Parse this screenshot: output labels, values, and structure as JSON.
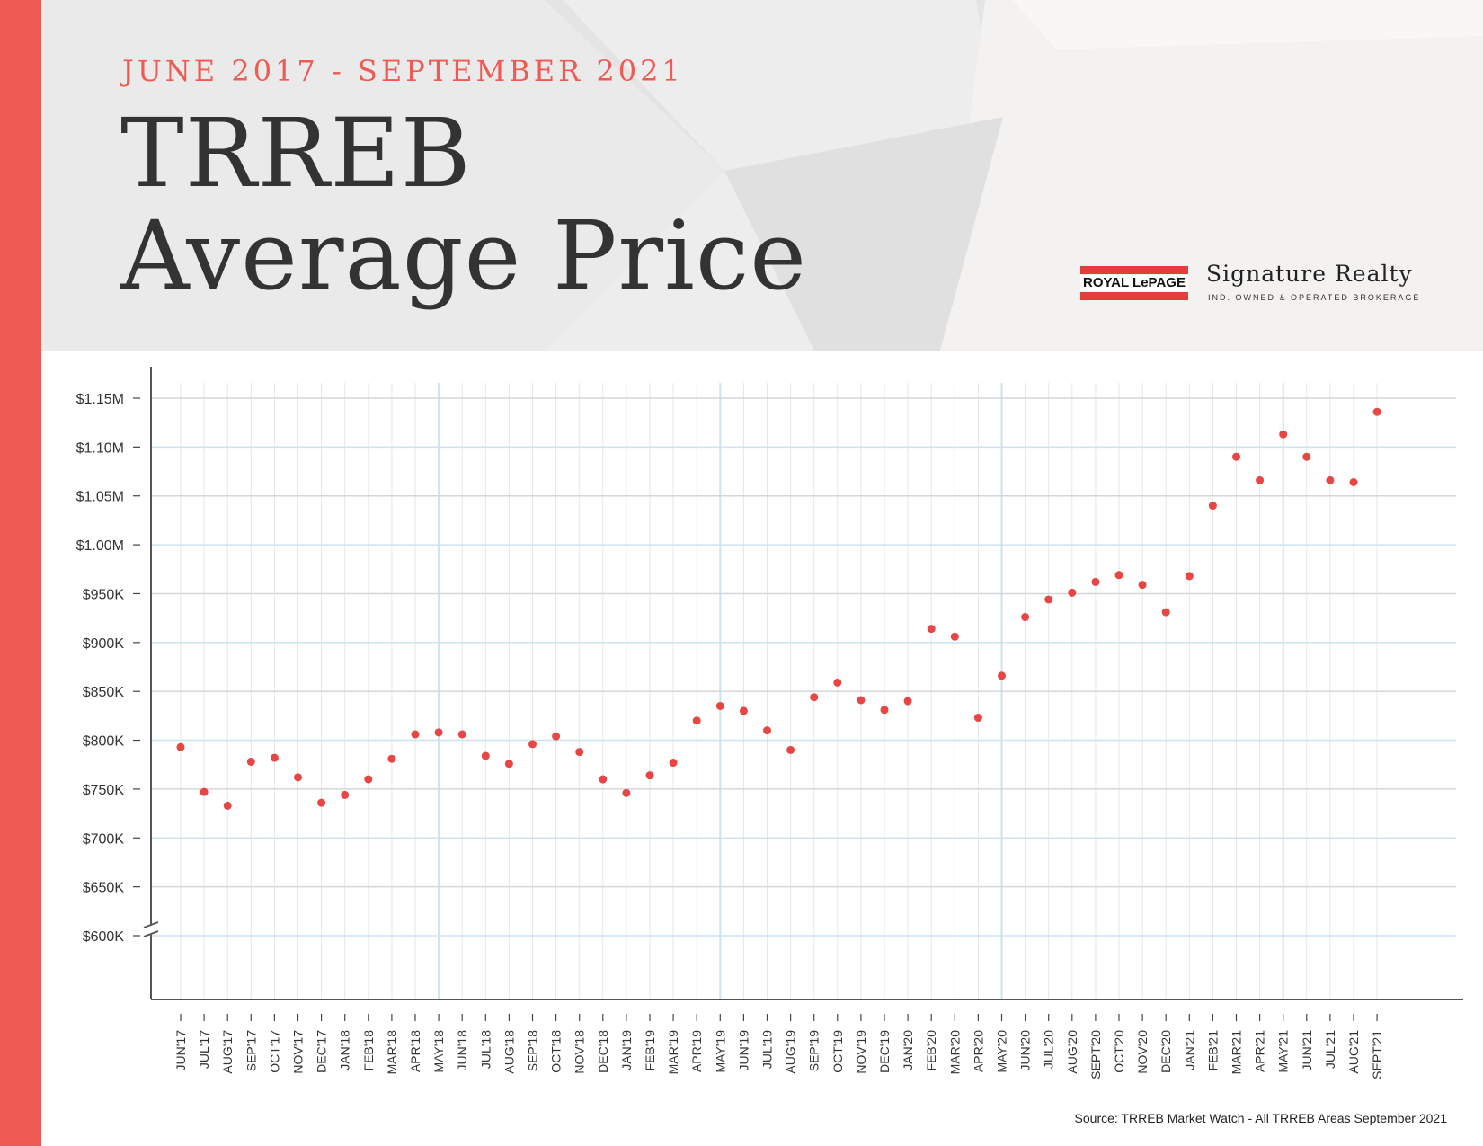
{
  "header": {
    "subtitle": "JUNE 2017 - SEPTEMBER 2021",
    "title_line1": "TRREB",
    "title_line2": "Average Price"
  },
  "logo": {
    "mark_text": "ROYAL LePAGE",
    "brand": "Signature Realty",
    "tagline": "IND. OWNED & OPERATED BROKERAGE"
  },
  "source": "Source: TRREB Market Watch - All TRREB Areas September 2021",
  "colors": {
    "accent": "#ef5a54",
    "point": "#e84545",
    "grid_blue": "#cde3ee",
    "grid_gray": "#d6d6d6"
  },
  "chart_data": {
    "type": "scatter",
    "title": "TRREB Average Price",
    "categories": [
      "JUN'17",
      "JUL'17",
      "AUG'17",
      "SEP'17",
      "OCT'17",
      "NOV'17",
      "DEC'17",
      "JAN'18",
      "FEB'18",
      "MAR'18",
      "APR'18",
      "MAY'18",
      "JUN'18",
      "JUL'18",
      "AUG'18",
      "SEP'18",
      "OCT'18",
      "NOV'18",
      "DEC'18",
      "JAN'19",
      "FEB'19",
      "MAR'19",
      "APR'19",
      "MAY'19",
      "JUN'19",
      "JUL'19",
      "AUG'19",
      "SEP'19",
      "OCT'19",
      "NOV'19",
      "DEC'19",
      "JAN'20",
      "FEB'20",
      "MAR'20",
      "APR'20",
      "MAY'20",
      "JUN'20",
      "JUL'20",
      "AUG'20",
      "SEPT'20",
      "OCT'20",
      "NOV'20",
      "DEC'20",
      "JAN'21",
      "FEB'21",
      "MAR'21",
      "APR'21",
      "MAY'21",
      "JUN'21",
      "JUL'21",
      "AUG'21",
      "SEPT'21"
    ],
    "values": [
      793000,
      747000,
      733000,
      778000,
      782000,
      762000,
      736000,
      744000,
      760000,
      781000,
      806000,
      808000,
      806000,
      784000,
      776000,
      796000,
      804000,
      788000,
      760000,
      746000,
      764000,
      777000,
      820000,
      835000,
      830000,
      810000,
      790000,
      844000,
      859000,
      841000,
      831000,
      840000,
      914000,
      906000,
      823000,
      866000,
      926000,
      944000,
      951000,
      962000,
      969000,
      959000,
      931000,
      968000,
      1040000,
      1090000,
      1066000,
      1113000,
      1090000,
      1066000,
      1064000,
      1136000
    ],
    "yticks": [
      "$1.15M",
      "$1.10M",
      "$1.05M",
      "$1.00M",
      "$950K",
      "$900K",
      "$850K",
      "$800K",
      "$750K",
      "$700K",
      "$650K",
      "$600K"
    ],
    "ytick_values": [
      1150000,
      1100000,
      1050000,
      1000000,
      950000,
      900000,
      850000,
      800000,
      750000,
      700000,
      650000,
      600000
    ],
    "ylim": [
      600000,
      1150000
    ],
    "y_axis_break": true,
    "grid": true,
    "xlabel": "",
    "ylabel": ""
  }
}
